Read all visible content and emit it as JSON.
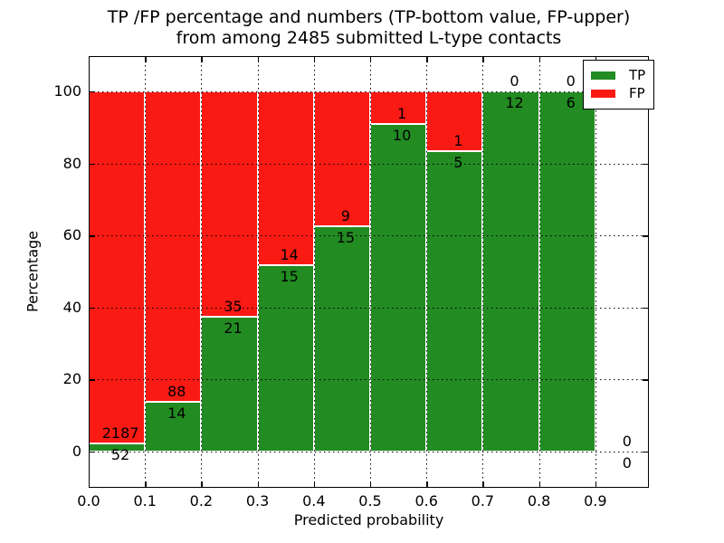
{
  "figure": {
    "title_line1": "TP /FP percentage and numbers (TP-bottom value, FP-upper)",
    "title_line2": "from among 2485 submitted L-type contacts",
    "xlabel": "Predicted probability",
    "ylabel": "Percentage"
  },
  "legend": {
    "position": "upper-right",
    "items": [
      {
        "label": "TP",
        "color": "#228b22"
      },
      {
        "label": "FP",
        "color": "#fa1a14"
      }
    ]
  },
  "colors": {
    "tp": "#228b22",
    "fp": "#fa1a14",
    "bar_edge": "#ffffff",
    "grid": "#000000",
    "frame": "#000000",
    "background": "#ffffff"
  },
  "chart_data": {
    "type": "bar",
    "stacked": true,
    "normalized": "each bin stacked to 100%",
    "total_contacts": 2485,
    "bin_width": 0.1,
    "bin_starts": [
      0.0,
      0.1,
      0.2,
      0.3,
      0.4,
      0.5,
      0.6,
      0.7,
      0.8,
      0.9
    ],
    "series": [
      {
        "name": "TP",
        "counts": [
          52,
          14,
          21,
          15,
          15,
          10,
          5,
          12,
          6,
          0
        ]
      },
      {
        "name": "FP",
        "counts": [
          2187,
          88,
          35,
          14,
          9,
          1,
          1,
          0,
          0,
          0
        ]
      }
    ],
    "tp_percent_of_bin": [
      2.32,
      13.73,
      37.5,
      51.72,
      62.5,
      90.91,
      83.33,
      100.0,
      100.0,
      0.0
    ],
    "x_tick_labels": [
      "0.0",
      "0.1",
      "0.2",
      "0.3",
      "0.4",
      "0.5",
      "0.6",
      "0.7",
      "0.8",
      "0.9"
    ],
    "x_tick_values": [
      0.0,
      0.1,
      0.2,
      0.3,
      0.4,
      0.5,
      0.6,
      0.7,
      0.8,
      0.9
    ],
    "y_tick_values": [
      0,
      20,
      40,
      60,
      80,
      100
    ],
    "xlim": [
      0.0,
      1.0
    ],
    "ylim": [
      -10,
      110
    ],
    "grid": "dotted",
    "xlabel": "Predicted probability",
    "ylabel": "Percentage"
  }
}
